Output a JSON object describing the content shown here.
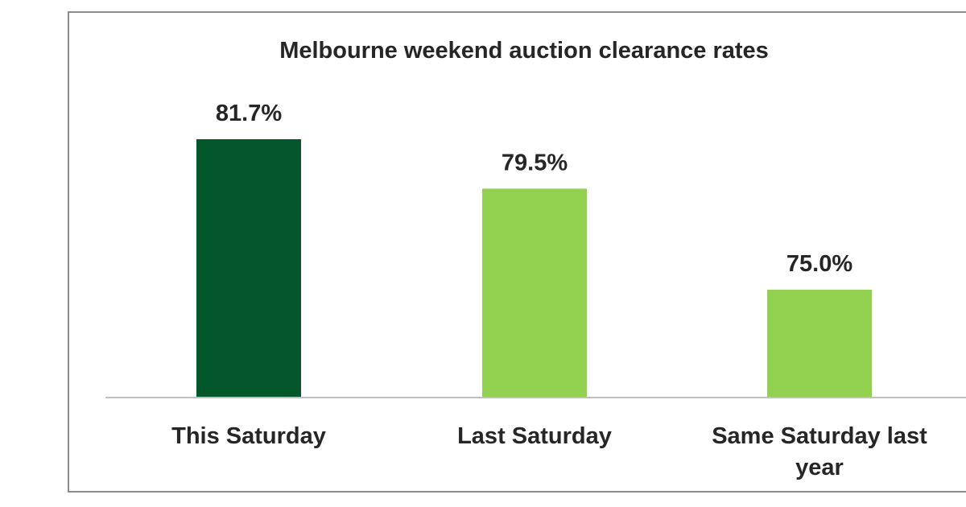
{
  "chart_data": {
    "type": "bar",
    "title": "Melbourne weekend auction clearance rates",
    "xlabel": "",
    "ylabel": "",
    "categories": [
      "This Saturday",
      "Last Saturday",
      "Same Saturday last year"
    ],
    "values": [
      81.7,
      79.5,
      75.0
    ],
    "value_labels": [
      "81.7%",
      "79.5%",
      "75.0%"
    ],
    "colors": [
      "#03572a",
      "#92d050",
      "#92d050"
    ],
    "ylim": [
      70.2,
      81.7
    ],
    "grid": false,
    "legend": "none"
  }
}
